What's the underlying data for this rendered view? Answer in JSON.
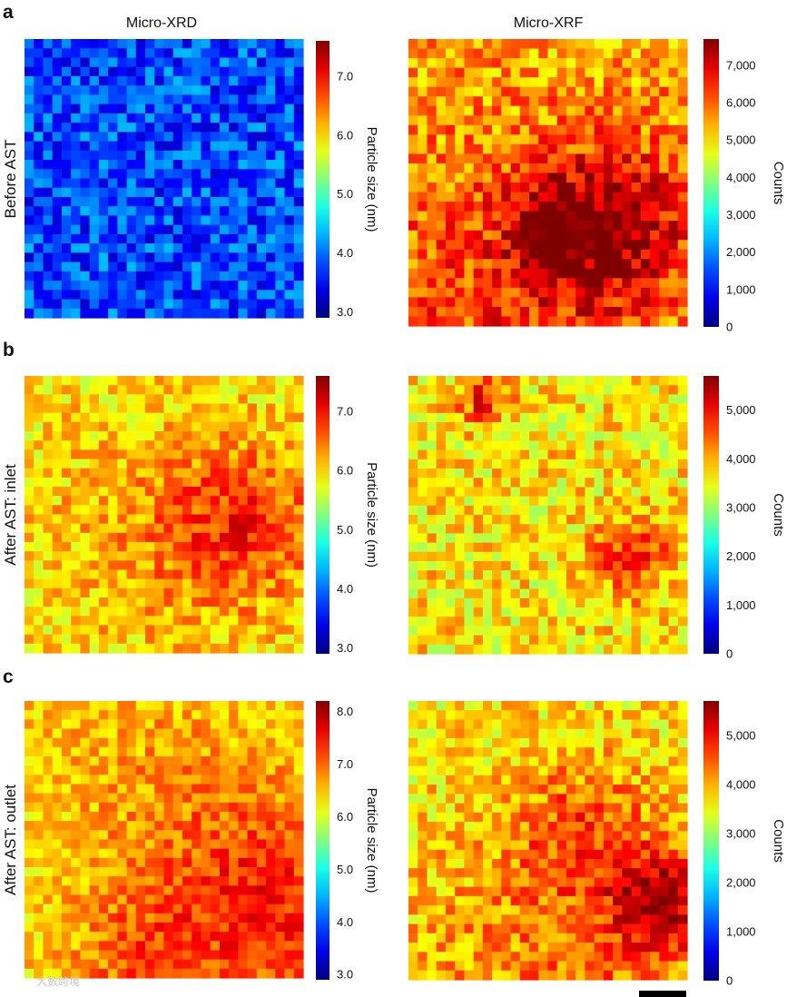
{
  "column_titles": [
    "Micro-XRD",
    "Micro-XRF"
  ],
  "panel_letters": [
    "a",
    "b",
    "c"
  ],
  "row_labels": [
    "Before AST",
    "After AST: inlet",
    "After AST: outlet"
  ],
  "watermark": "大数跨境",
  "colormap": "jet",
  "colors": {
    "low": "#0000ff",
    "high": "#ff0000"
  },
  "chart_data": [
    {
      "type": "heatmap",
      "panel": "a",
      "column": "Micro-XRD",
      "grid": 30,
      "colorbar_label": "Particle size (nm)",
      "range": [
        2.9,
        7.6
      ],
      "ticks": [
        3.0,
        4.0,
        5.0,
        6.0,
        7.0
      ],
      "tick_labels": [
        "3.0",
        "4.0",
        "5.0",
        "6.0",
        "7.0"
      ],
      "mean": 3.8,
      "noise": 0.55,
      "hotspots": []
    },
    {
      "type": "heatmap",
      "panel": "a",
      "column": "Micro-XRF",
      "grid": 30,
      "colorbar_label": "Counts",
      "range": [
        0,
        7700
      ],
      "ticks": [
        0,
        1000,
        2000,
        3000,
        4000,
        5000,
        6000,
        7000
      ],
      "tick_labels": [
        "0",
        "1,000",
        "2,000",
        "3,000",
        "4,000",
        "5,000",
        "6,000",
        "7,000"
      ],
      "mean": 5500,
      "noise": 900,
      "hotspots": [
        [
          0.72,
          0.66,
          0.2,
          1900
        ],
        [
          0.5,
          0.66,
          0.09,
          1500
        ],
        [
          0.3,
          0.9,
          0.35,
          800
        ]
      ]
    },
    {
      "type": "heatmap",
      "panel": "b",
      "column": "Micro-XRD",
      "grid": 30,
      "colorbar_label": "Particle size (nm)",
      "range": [
        2.9,
        7.6
      ],
      "ticks": [
        3.0,
        4.0,
        5.0,
        6.0,
        7.0
      ],
      "tick_labels": [
        "3.0",
        "4.0",
        "5.0",
        "6.0",
        "7.0"
      ],
      "mean": 5.9,
      "noise": 0.45,
      "hotspots": [
        [
          0.78,
          0.53,
          0.2,
          0.8
        ],
        [
          0.45,
          0.6,
          0.35,
          0.3
        ]
      ]
    },
    {
      "type": "heatmap",
      "panel": "b",
      "column": "Micro-XRF",
      "grid": 30,
      "colorbar_label": "Counts",
      "range": [
        0,
        5700
      ],
      "ticks": [
        0,
        1000,
        2000,
        3000,
        4000,
        5000
      ],
      "tick_labels": [
        "0",
        "1,000",
        "2,000",
        "3,000",
        "4,000",
        "5,000"
      ],
      "mean": 3700,
      "noise": 650,
      "hotspots": [
        [
          0.8,
          0.65,
          0.09,
          1300
        ],
        [
          0.27,
          0.08,
          0.06,
          1300
        ]
      ]
    },
    {
      "type": "heatmap",
      "panel": "c",
      "column": "Micro-XRD",
      "grid": 30,
      "colorbar_label": "Particle size (nm)",
      "range": [
        2.9,
        8.2
      ],
      "ticks": [
        3.0,
        4.0,
        5.0,
        6.0,
        7.0,
        8.0
      ],
      "tick_labels": [
        "3.0",
        "4.0",
        "5.0",
        "6.0",
        "7.0",
        "8.0"
      ],
      "mean": 6.3,
      "noise": 0.45,
      "hotspots": [
        [
          0.9,
          0.75,
          0.28,
          1.0
        ],
        [
          0.5,
          0.3,
          0.35,
          0.4
        ],
        [
          0.4,
          0.95,
          0.2,
          0.6
        ]
      ]
    },
    {
      "type": "heatmap",
      "panel": "c",
      "column": "Micro-XRF",
      "grid": 30,
      "colorbar_label": "Counts",
      "range": [
        0,
        5700
      ],
      "ticks": [
        0,
        1000,
        2000,
        3000,
        4000,
        5000
      ],
      "tick_labels": [
        "0",
        "1,000",
        "2,000",
        "3,000",
        "4,000",
        "5,000"
      ],
      "mean": 3650,
      "noise": 600,
      "hotspots": [
        [
          0.9,
          0.72,
          0.12,
          1600
        ],
        [
          0.6,
          0.93,
          0.4,
          700
        ],
        [
          0.62,
          0.45,
          0.18,
          600
        ]
      ]
    }
  ]
}
